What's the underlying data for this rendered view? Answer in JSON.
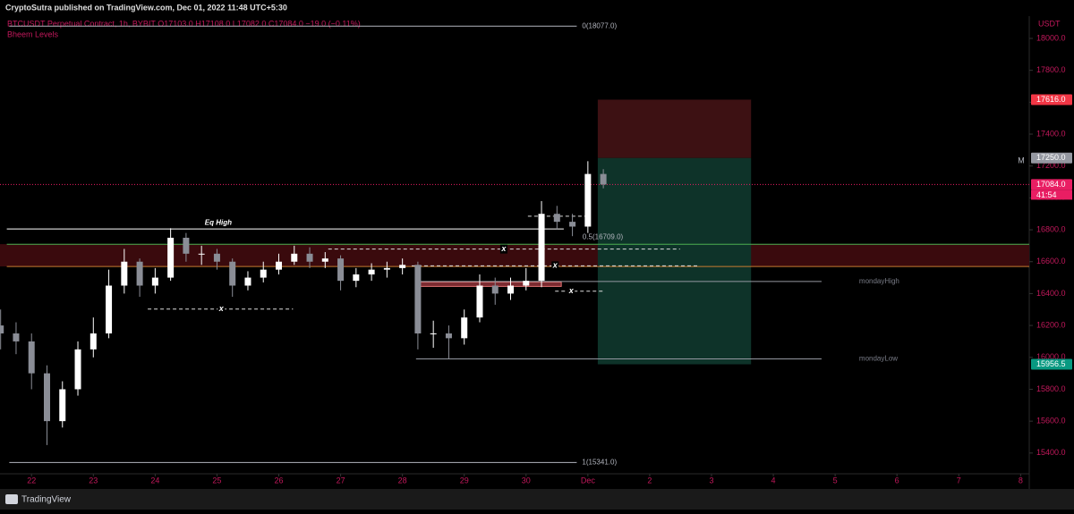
{
  "header": {
    "publisher": "CryptoSutra published on TradingView.com, Dec 01, 2022 11:48 UTC+5:30",
    "legend": "BTCUSDT Perpetual Contract, 1h, BYBIT  O17103.0  H17108.0  L17082.0  C17084.0  −19.0 (−0.11%)",
    "indicator": "Bheem Levels"
  },
  "footer": {
    "brand": "TradingView"
  },
  "chart_data": {
    "type": "candlestick",
    "currency": "USDT",
    "scale_mode": "M",
    "xlim": [
      21.49,
      38.14
    ],
    "ylim": [
      15270,
      18140
    ],
    "xticks": [
      22,
      23,
      24,
      25,
      26,
      27,
      28,
      29,
      30,
      {
        "value": 31,
        "label": "Dec"
      },
      {
        "value": 32,
        "label": "2"
      },
      {
        "value": 33,
        "label": "3"
      },
      {
        "value": 34,
        "label": "4"
      },
      {
        "value": 35,
        "label": "5"
      },
      {
        "value": 36,
        "label": "6"
      },
      {
        "value": 37,
        "label": "7"
      },
      {
        "value": 38,
        "label": "8"
      }
    ],
    "yticks": [
      {
        "value": 15400,
        "label": "15400.0"
      },
      {
        "value": 15600,
        "label": "15600.0"
      },
      {
        "value": 15800,
        "label": "15800.0"
      },
      {
        "value": 16000,
        "label": "16000.0"
      },
      {
        "value": 16200,
        "label": "16200.0"
      },
      {
        "value": 16400,
        "label": "16400.0"
      },
      {
        "value": 16600,
        "label": "16600.0"
      },
      {
        "value": 16800,
        "label": "16800.0"
      },
      {
        "value": 17000,
        "label": "17000.0"
      },
      {
        "value": 17200,
        "label": "17200.0"
      },
      {
        "value": 17400,
        "label": "17400.0"
      },
      {
        "value": 17600,
        "label": "17600.0"
      },
      {
        "value": 17800,
        "label": "17800.0"
      },
      {
        "value": 18000,
        "label": "18000.0"
      }
    ],
    "up_color": "#ffffff",
    "down_color": "#8a8d96",
    "x": [
      21.5,
      21.75,
      22,
      22.25,
      22.5,
      22.75,
      23,
      23.25,
      23.5,
      23.75,
      24,
      24.25,
      24.5,
      24.75,
      25,
      25.25,
      25.5,
      25.75,
      26,
      26.25,
      26.5,
      26.75,
      27,
      27.25,
      27.5,
      27.75,
      28,
      28.25,
      28.5,
      28.75,
      29,
      29.25,
      29.5,
      29.75,
      30,
      30.25,
      30.5,
      30.75,
      31,
      31.25
    ],
    "open": [
      16200,
      16150,
      16100,
      15900,
      15600,
      15800,
      16050,
      16150,
      16450,
      16600,
      16450,
      16500,
      16750,
      16650,
      16650,
      16600,
      16450,
      16500,
      16550,
      16600,
      16650,
      16600,
      16620,
      16480,
      16520,
      16550,
      16560,
      16580,
      16150,
      16150,
      16120,
      16250,
      16450,
      16400,
      16450,
      16480,
      16900,
      16850,
      16820,
      17150
    ],
    "high": [
      16300,
      16220,
      16150,
      15950,
      15850,
      16100,
      16250,
      16550,
      16680,
      16620,
      16560,
      16810,
      16780,
      16700,
      16680,
      16620,
      16540,
      16600,
      16650,
      16700,
      16690,
      16660,
      16640,
      16560,
      16590,
      16600,
      16620,
      16600,
      16230,
      16200,
      16300,
      16520,
      16500,
      16500,
      16560,
      16980,
      16950,
      16900,
      17230,
      17180
    ],
    "low": [
      16050,
      16020,
      15800,
      15450,
      15560,
      15760,
      16000,
      16120,
      16400,
      16380,
      16400,
      16480,
      16600,
      16580,
      16550,
      16380,
      16420,
      16470,
      16520,
      16580,
      16560,
      16560,
      16420,
      16440,
      16480,
      16500,
      16520,
      16050,
      16060,
      15990,
      16080,
      16220,
      16330,
      16360,
      16420,
      16440,
      16800,
      16760,
      16780,
      17060
    ],
    "close": [
      16150,
      16100,
      15900,
      15600,
      15800,
      16050,
      16150,
      16450,
      16600,
      16450,
      16500,
      16750,
      16650,
      16650,
      16600,
      16450,
      16500,
      16550,
      16600,
      16650,
      16600,
      16620,
      16480,
      16520,
      16550,
      16560,
      16580,
      16150,
      16150,
      16120,
      16250,
      16450,
      16400,
      16450,
      16480,
      16900,
      16850,
      16820,
      17150,
      17084
    ],
    "boxes": [
      {
        "range": [
          16570,
          16710
        ],
        "x": [
          21.49,
          38.14
        ],
        "color": "#3a0a0d"
      },
      {
        "range": [
          16445,
          16472
        ],
        "x": [
          28.22,
          30.57
        ],
        "color": "#7a2a30"
      }
    ],
    "levels": [
      {
        "value": 18077,
        "label": "0(18077.0)",
        "x": [
          21.64,
          30.82
        ],
        "color": "#b2b5be"
      },
      {
        "value": 15341,
        "label": "1(15341.0)",
        "x": [
          21.64,
          30.82
        ],
        "color": "#b2b5be"
      },
      {
        "value": 16709,
        "label": "0.5(16709.0)",
        "x": [
          21.6,
          38.14
        ],
        "color": "#4caf50"
      },
      {
        "value": 16570,
        "x": [
          21.6,
          38.14
        ],
        "color": "#c77b30"
      },
      {
        "value": 16805,
        "label": "Eq High",
        "x": [
          21.6,
          30.61
        ],
        "color": "#ffffff"
      },
      {
        "value": 16476,
        "label": "mondayHigh",
        "x": [
          28.22,
          34.78
        ],
        "color": "#9598a1"
      },
      {
        "value": 15990,
        "label": "mondayLow",
        "x": [
          28.22,
          34.78
        ],
        "color": "#9598a1"
      }
    ],
    "dashed_levels": [
      {
        "value": 16679,
        "x": [
          26.8,
          32.49
        ],
        "marker": "x",
        "marker_x": 29.64
      },
      {
        "value": 16574,
        "x": [
          28.15,
          32.78
        ],
        "marker": "x",
        "marker_x": 30.47
      },
      {
        "value": 16303,
        "x": [
          23.88,
          26.23
        ],
        "marker": "x",
        "marker_x": 25.07
      },
      {
        "value": 16415,
        "x": [
          30.47,
          31.26
        ],
        "marker": "x",
        "marker_x": 30.73
      },
      {
        "value": 16885,
        "x": [
          30.03,
          31.04
        ]
      }
    ],
    "position": {
      "x": [
        31.16,
        33.64
      ],
      "stop": {
        "value": 17616,
        "label": "17616.0"
      },
      "entry": {
        "value": 17250,
        "label": "17250.0"
      },
      "target": {
        "value": 15956.5,
        "label": "15956.5"
      }
    },
    "last_price": {
      "value": 17084,
      "label": "17084.0",
      "countdown": "41:54"
    }
  }
}
